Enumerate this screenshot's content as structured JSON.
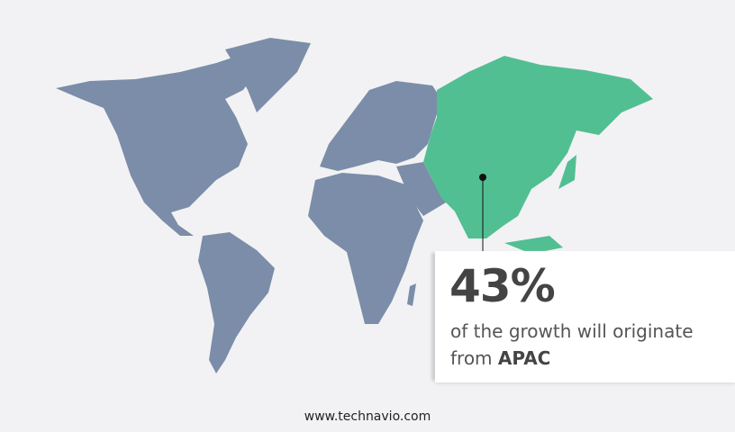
{
  "colors": {
    "background": "#f2f2f4",
    "land": "#7b8da8",
    "highlight": "#52bf92"
  },
  "highlight_region": "APAC",
  "callout": {
    "percent": "43%",
    "text": "of the growth will originate from",
    "region": "APAC"
  },
  "footer": {
    "url": "www.technavio.com"
  }
}
